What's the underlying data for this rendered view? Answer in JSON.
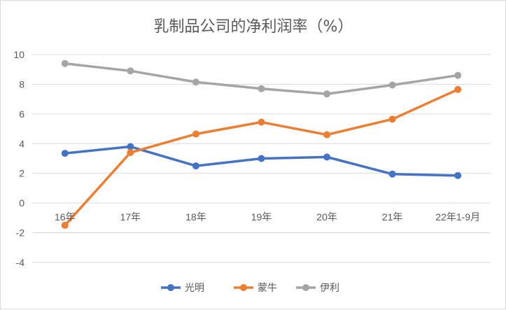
{
  "chart_data": {
    "type": "line",
    "title": "乳制品公司的净利润率（%）",
    "categories": [
      "16年",
      "17年",
      "18年",
      "19年",
      "20年",
      "21年",
      "22年1-9月"
    ],
    "ylim": [
      -4,
      10
    ],
    "yticks": [
      -4,
      -2,
      0,
      2,
      4,
      6,
      8,
      10
    ],
    "grid": "y",
    "legend_position": "bottom",
    "series": [
      {
        "name": "光明",
        "color": "#4472C4",
        "values": [
          3.35,
          3.8,
          2.5,
          3.0,
          3.1,
          1.95,
          1.85
        ]
      },
      {
        "name": "蒙牛",
        "color": "#ED7D31",
        "values": [
          -1.5,
          3.4,
          4.65,
          5.45,
          4.6,
          5.65,
          7.65
        ]
      },
      {
        "name": "伊利",
        "color": "#A5A5A5",
        "values": [
          9.4,
          8.9,
          8.15,
          7.7,
          7.35,
          7.95,
          8.6
        ]
      }
    ]
  }
}
